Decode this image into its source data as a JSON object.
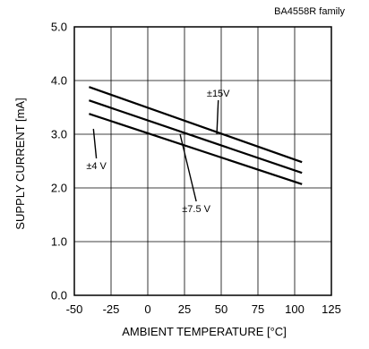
{
  "chart_data": {
    "type": "line",
    "family_label": "BA4558R  family",
    "xlabel": "AMBIENT TEMPERATURE [°C]",
    "ylabel": "SUPPLY CURRENT [mA]",
    "xlim": [
      -50,
      125
    ],
    "ylim": [
      0,
      5
    ],
    "x_ticks": [
      -50,
      -25,
      0,
      25,
      50,
      75,
      100,
      125
    ],
    "x_tick_labels": [
      "-50",
      "-25",
      "0",
      "25",
      "50",
      "75",
      "100",
      "125"
    ],
    "y_ticks": [
      0,
      1,
      2,
      3,
      4,
      5
    ],
    "y_tick_labels": [
      "0.0",
      "1.0",
      "2.0",
      "3.0",
      "4.0",
      "5.0"
    ],
    "grid": true,
    "series": [
      {
        "name": "±15V",
        "x": [
          -40,
          105
        ],
        "y": [
          3.88,
          2.48
        ]
      },
      {
        "name": "±7.5 V",
        "x": [
          -40,
          105
        ],
        "y": [
          3.63,
          2.28
        ]
      },
      {
        "name": "±4 V",
        "x": [
          -40,
          105
        ],
        "y": [
          3.38,
          2.07
        ]
      }
    ],
    "annotations": [
      {
        "series": 0,
        "text": "±15V",
        "text_x": 48,
        "text_y": 3.7,
        "point_x": 47,
        "point_y": 3.0
      },
      {
        "series": 1,
        "text": "±7.5 V",
        "text_x": 33,
        "text_y": 1.55,
        "point_x": 22,
        "point_y": 3.0
      },
      {
        "series": 2,
        "text": "±4 V",
        "text_x": -35,
        "text_y": 2.35,
        "point_x": -37,
        "point_y": 3.1
      }
    ],
    "line_color": "#000000",
    "grid_color": "#000000"
  }
}
